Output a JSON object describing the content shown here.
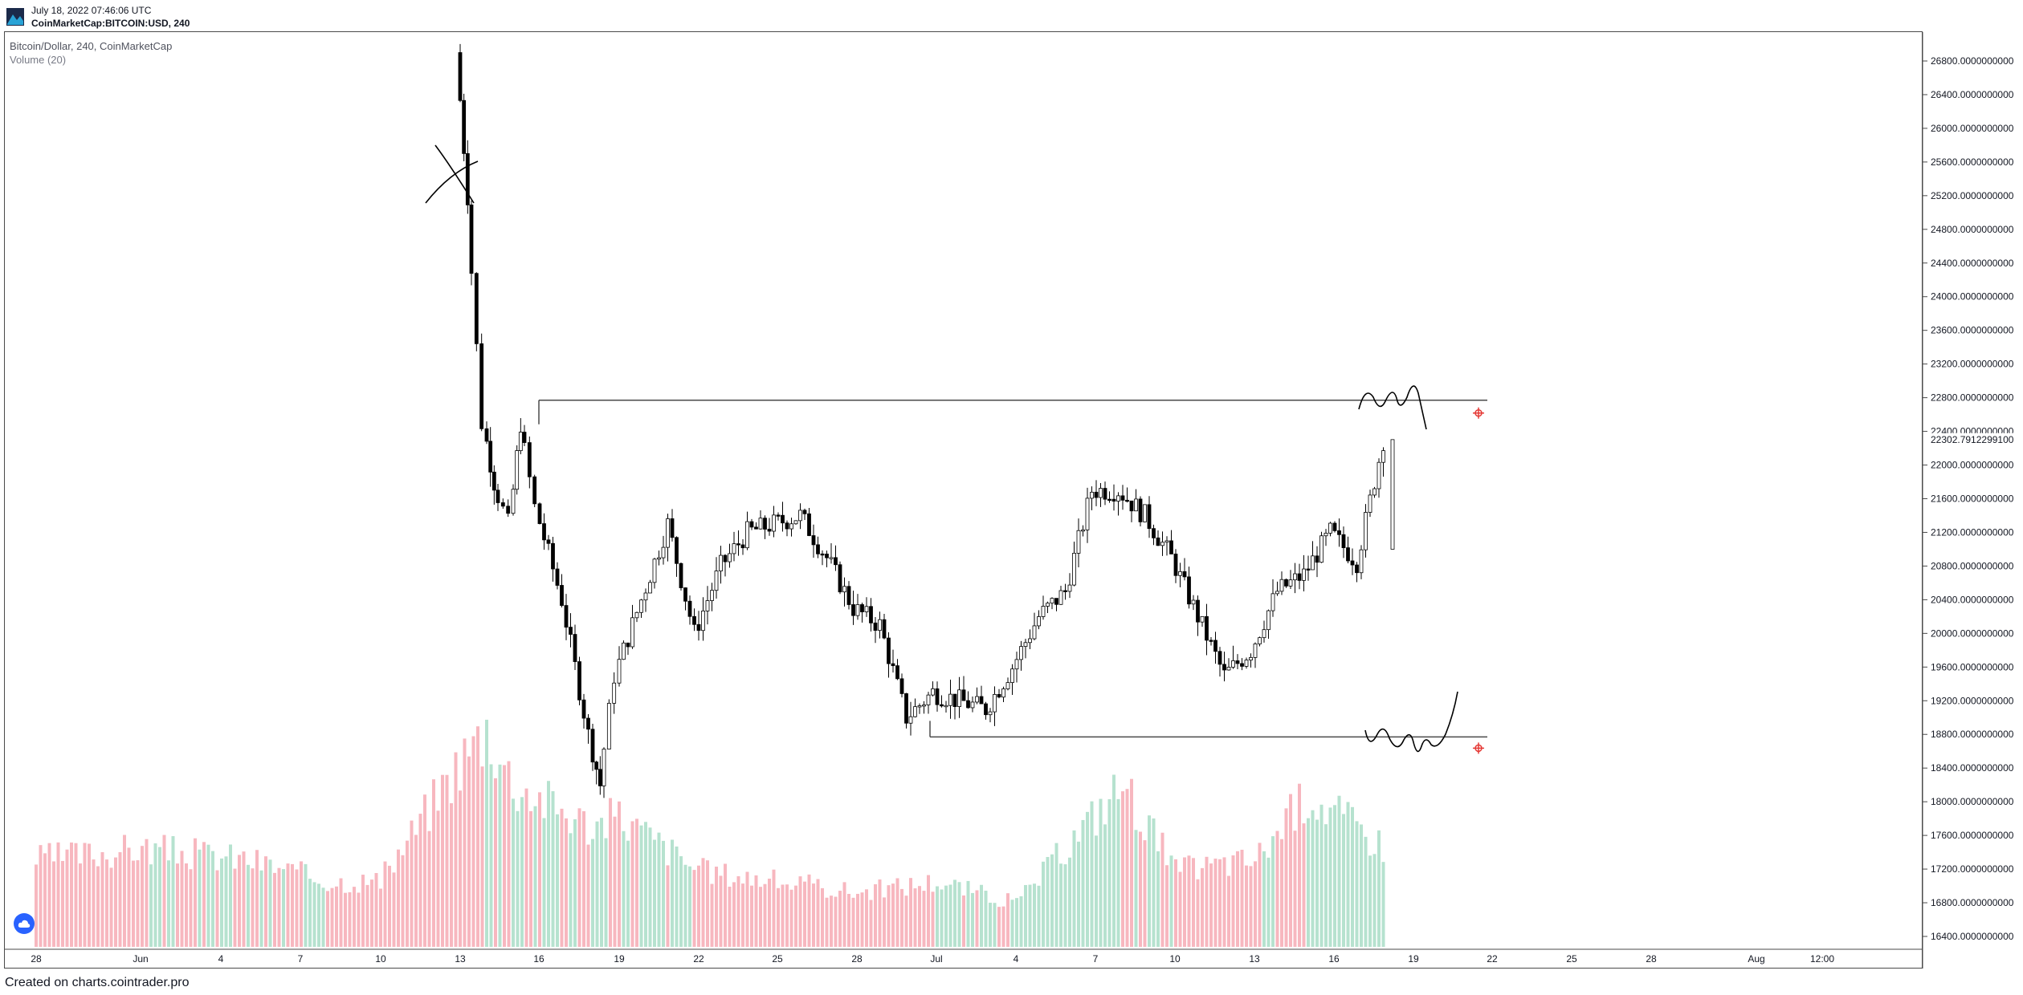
{
  "header": {
    "date": "July 18, 2022 07:46:06 UTC",
    "symbol": "CoinMarketCap:BITCOIN:USD, 240"
  },
  "legend": {
    "title": "Bitcoin/Dollar, 240, CoinMarketCap",
    "indicator": "Volume (20)"
  },
  "footer": {
    "text": "Created on charts.cointrader.pro"
  },
  "colors": {
    "up_volume": "#b6e2cf",
    "down_volume": "#f7b7bf",
    "candle": "#000000",
    "level_line": "#4a4a4a",
    "alert_marker": "#e53935",
    "brand": "#2962ff"
  },
  "chart_data": {
    "type": "candlestick",
    "title": "Bitcoin/Dollar, 240, CoinMarketCap",
    "price_axis": {
      "ticks": [
        26800,
        26400,
        26000,
        25600,
        25200,
        24800,
        24400,
        24000,
        23600,
        23200,
        22800,
        22400,
        22000,
        21600,
        21200,
        20800,
        20400,
        20000,
        19600,
        19200,
        18800,
        18400,
        18000,
        17600,
        17200,
        16800,
        16400
      ],
      "tick_decimals": 10,
      "last_price_label": "22302.7912299100",
      "last_price": 22302.79,
      "range": [
        16100,
        27200
      ]
    },
    "time_axis": {
      "labels": [
        "28",
        "Jun",
        "4",
        "7",
        "10",
        "13",
        "16",
        "19",
        "22",
        "25",
        "28",
        "Jul",
        "4",
        "7",
        "10",
        "13",
        "16",
        "19",
        "22",
        "25",
        "28",
        "Aug",
        "12:00"
      ]
    },
    "levels": [
      {
        "name": "resistance",
        "price": 22770
      },
      {
        "name": "support",
        "price": 18770
      }
    ],
    "close_path": [
      {
        "date": "2022-06-13",
        "close": 26900
      },
      {
        "date": "2022-06-13",
        "close": 25200
      },
      {
        "date": "2022-06-14",
        "close": 22500
      },
      {
        "date": "2022-06-14",
        "close": 21800
      },
      {
        "date": "2022-06-15",
        "close": 21300
      },
      {
        "date": "2022-06-15",
        "close": 22500
      },
      {
        "date": "2022-06-16",
        "close": 21500
      },
      {
        "date": "2022-06-17",
        "close": 20400
      },
      {
        "date": "2022-06-18",
        "close": 18800
      },
      {
        "date": "2022-06-18",
        "close": 18200
      },
      {
        "date": "2022-06-19",
        "close": 19500
      },
      {
        "date": "2022-06-20",
        "close": 20400
      },
      {
        "date": "2022-06-21",
        "close": 21300
      },
      {
        "date": "2022-06-22",
        "close": 20000
      },
      {
        "date": "2022-06-23",
        "close": 20800
      },
      {
        "date": "2022-06-24",
        "close": 21200
      },
      {
        "date": "2022-06-26",
        "close": 21400
      },
      {
        "date": "2022-06-27",
        "close": 20900
      },
      {
        "date": "2022-06-28",
        "close": 20300
      },
      {
        "date": "2022-06-29",
        "close": 20100
      },
      {
        "date": "2022-06-30",
        "close": 19000
      },
      {
        "date": "2022-07-01",
        "close": 19300
      },
      {
        "date": "2022-07-02",
        "close": 19200
      },
      {
        "date": "2022-07-03",
        "close": 19100
      },
      {
        "date": "2022-07-04",
        "close": 19600
      },
      {
        "date": "2022-07-05",
        "close": 20200
      },
      {
        "date": "2022-07-06",
        "close": 20500
      },
      {
        "date": "2022-07-07",
        "close": 21700
      },
      {
        "date": "2022-07-08",
        "close": 21700
      },
      {
        "date": "2022-07-09",
        "close": 21400
      },
      {
        "date": "2022-07-10",
        "close": 20900
      },
      {
        "date": "2022-07-11",
        "close": 20200
      },
      {
        "date": "2022-07-12",
        "close": 19500
      },
      {
        "date": "2022-07-13",
        "close": 19800
      },
      {
        "date": "2022-07-14",
        "close": 20500
      },
      {
        "date": "2022-07-15",
        "close": 20700
      },
      {
        "date": "2022-07-16",
        "close": 21200
      },
      {
        "date": "2022-07-17",
        "close": 20850
      },
      {
        "date": "2022-07-18",
        "close": 22300
      }
    ],
    "volume": {
      "name": "Volume (20)",
      "bars": [
        {
          "date": "2022-05-28",
          "relative": 0.4,
          "direction": "down"
        },
        {
          "date": "2022-06-01",
          "relative": 0.45,
          "direction": "down"
        },
        {
          "date": "2022-06-05",
          "relative": 0.4,
          "direction": "up"
        },
        {
          "date": "2022-06-08",
          "relative": 0.3,
          "direction": "down"
        },
        {
          "date": "2022-06-10",
          "relative": 0.3,
          "direction": "down"
        },
        {
          "date": "2022-06-13",
          "relative": 0.85,
          "direction": "down"
        },
        {
          "date": "2022-06-14",
          "relative": 1.0,
          "direction": "down"
        },
        {
          "date": "2022-06-15",
          "relative": 0.75,
          "direction": "up"
        },
        {
          "date": "2022-06-18",
          "relative": 0.55,
          "direction": "down"
        },
        {
          "date": "2022-06-19",
          "relative": 0.6,
          "direction": "up"
        },
        {
          "date": "2022-06-22",
          "relative": 0.35,
          "direction": "down"
        },
        {
          "date": "2022-06-28",
          "relative": 0.25,
          "direction": "down"
        },
        {
          "date": "2022-07-01",
          "relative": 0.3,
          "direction": "down"
        },
        {
          "date": "2022-07-04",
          "relative": 0.2,
          "direction": "up"
        },
        {
          "date": "2022-07-08",
          "relative": 0.75,
          "direction": "up"
        },
        {
          "date": "2022-07-10",
          "relative": 0.35,
          "direction": "down"
        },
        {
          "date": "2022-07-13",
          "relative": 0.4,
          "direction": "down"
        },
        {
          "date": "2022-07-15",
          "relative": 0.7,
          "direction": "up"
        },
        {
          "date": "2022-07-18",
          "relative": 0.45,
          "direction": "up"
        }
      ]
    },
    "grid": false
  }
}
